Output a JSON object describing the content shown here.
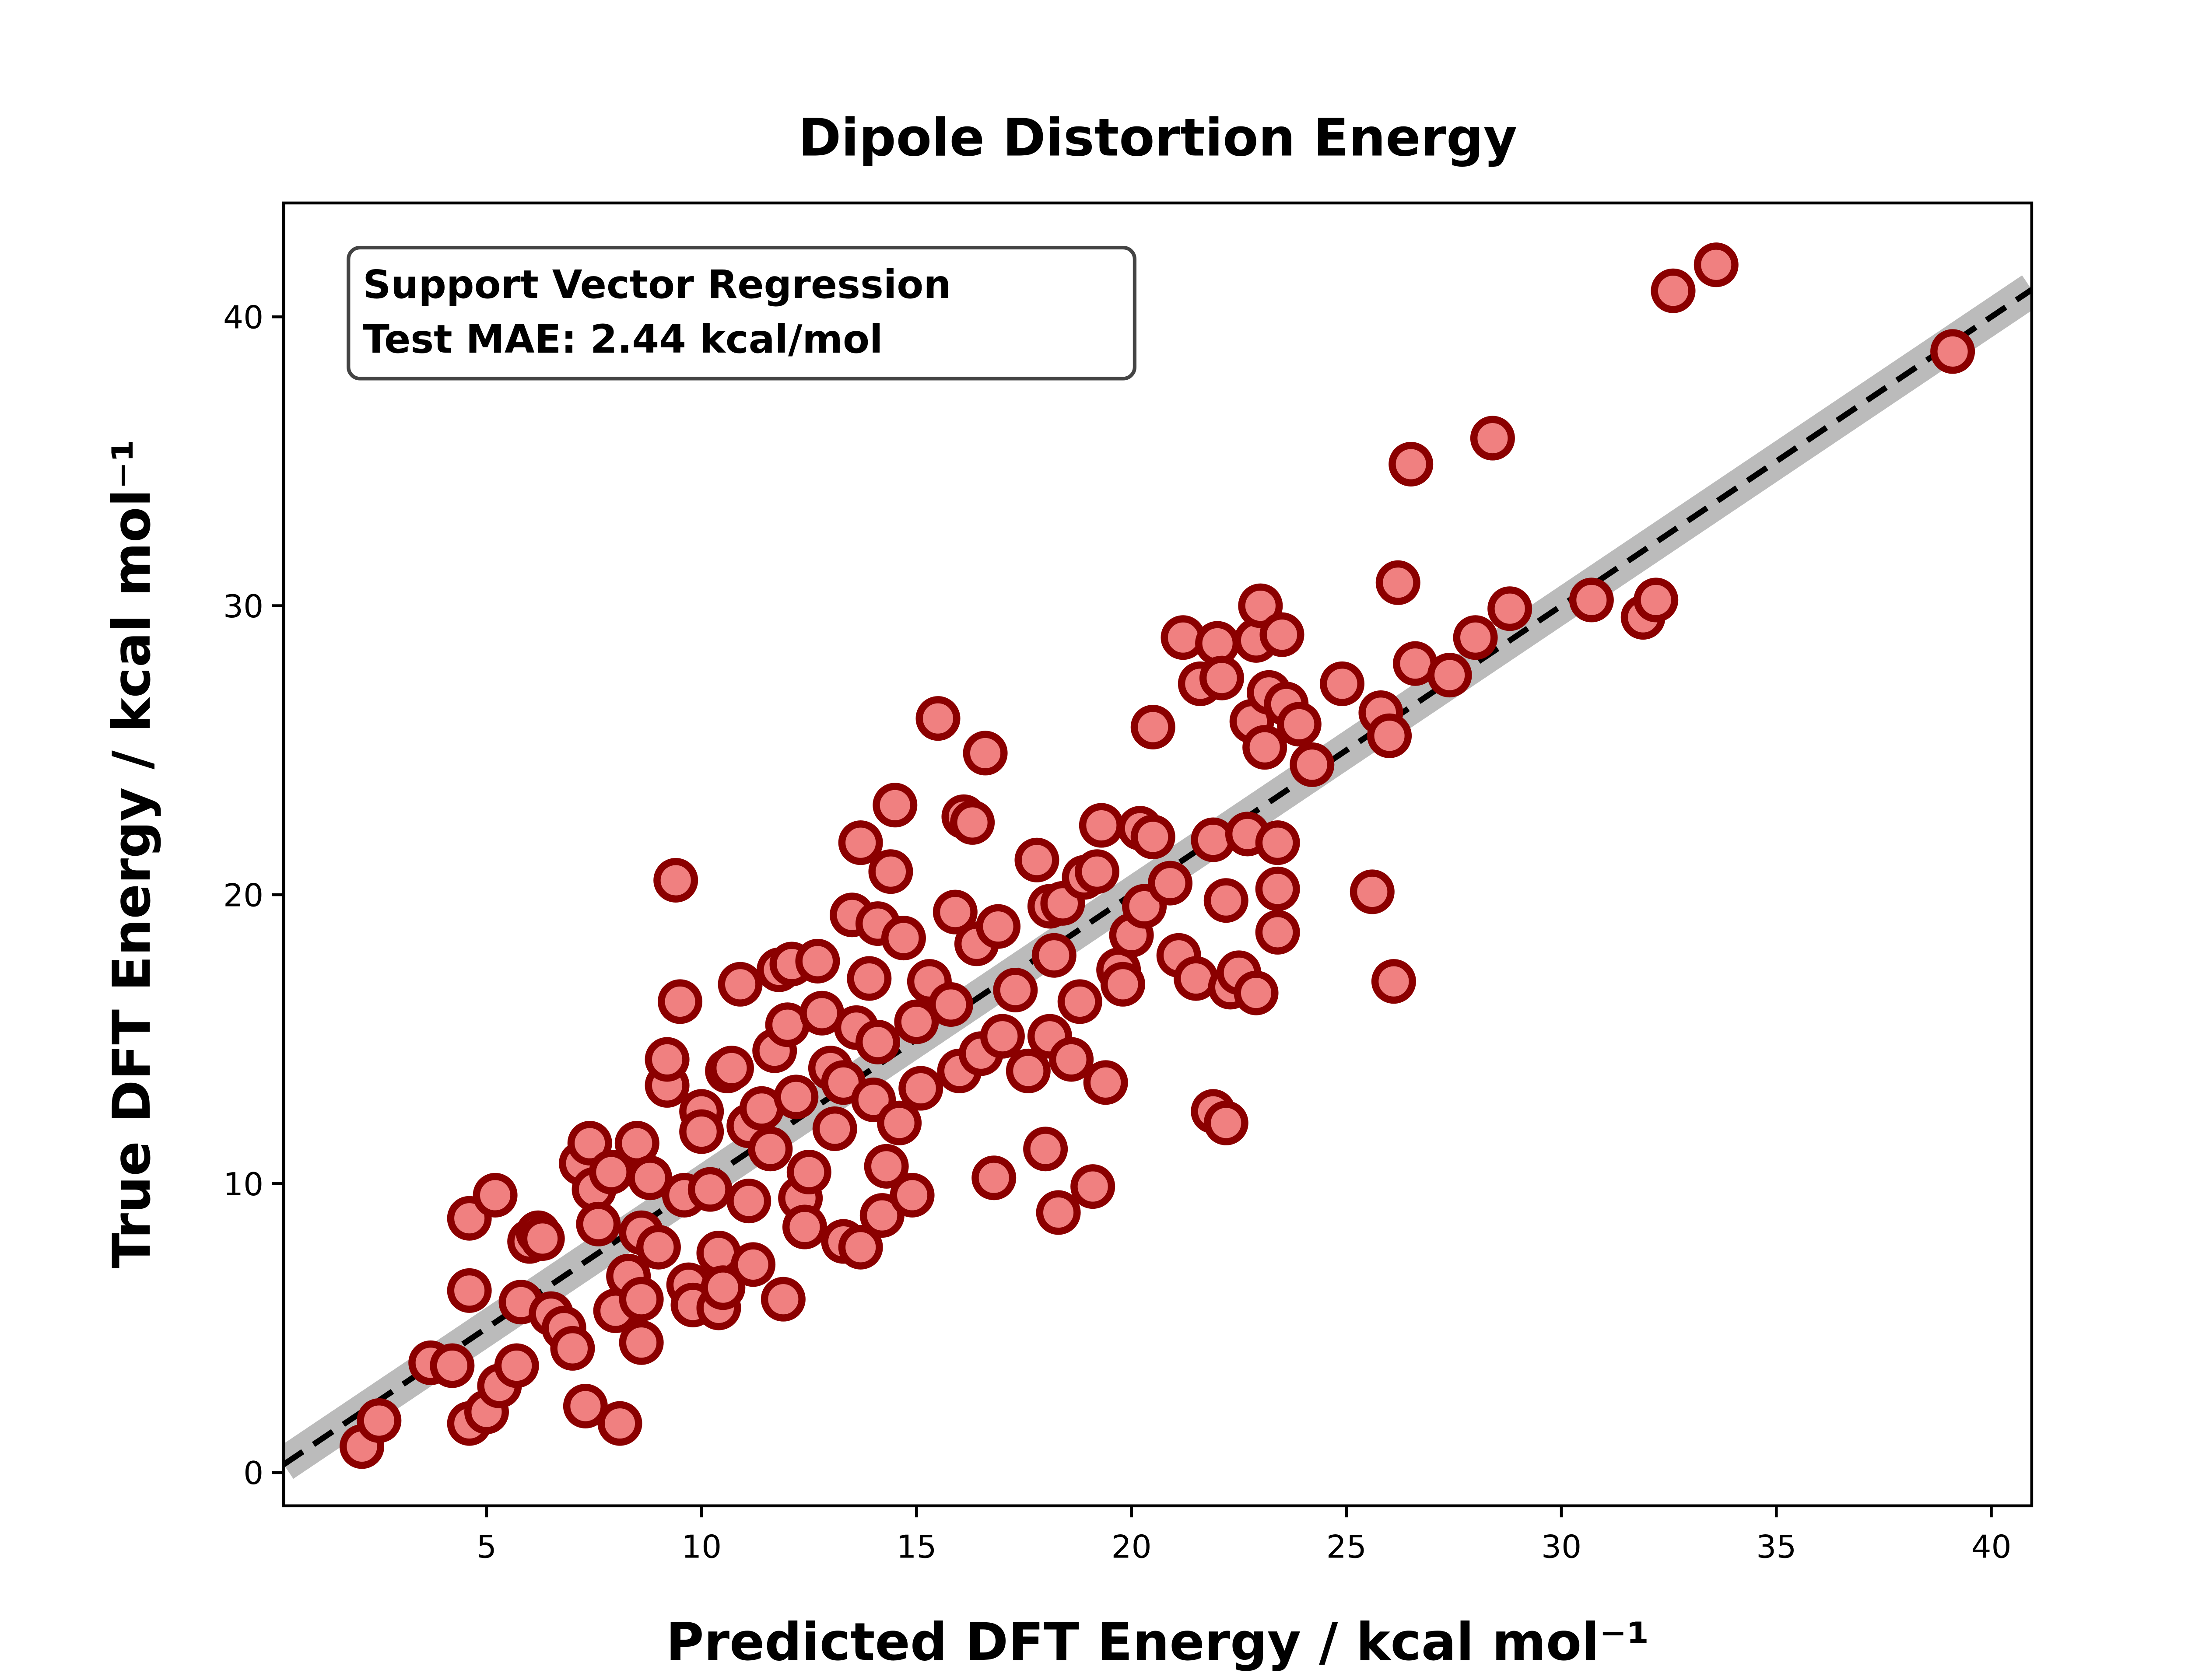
{
  "chart_data": {
    "type": "scatter",
    "title": "Dipole Distortion Energy",
    "xlabel": "Predicted DFT Energy / kcal mol⁻¹",
    "ylabel": "True DFT Energy / kcal mol⁻¹",
    "annotation": [
      "Support Vector Regression",
      "Test MAE: 2.44 kcal/mol"
    ],
    "xlim": [
      0.28,
      40.94
    ],
    "ylim": [
      -1.15,
      43.94
    ],
    "xticks": [
      5,
      10,
      15,
      20,
      25,
      30,
      35,
      40
    ],
    "yticks": [
      0,
      10,
      20,
      30,
      40
    ],
    "series": [
      {
        "color": "#f08080",
        "edgecolor": "#8b0000",
        "x": [
          2.1,
          2.5,
          3.7,
          4.2,
          4.6,
          5.0,
          4.6,
          4.6,
          5.2,
          5.3,
          5.7,
          5.8,
          6.0,
          6.2,
          6.3,
          6.5,
          6.8,
          7.0,
          7.3,
          7.2,
          7.4,
          7.5,
          7.6,
          7.9,
          8.0,
          8.1,
          8.3,
          8.5,
          8.6,
          8.6,
          8.6,
          8.8,
          9.0,
          9.2,
          9.2,
          9.4,
          9.5,
          9.6,
          9.7,
          9.8,
          10.0,
          10.0,
          10.2,
          10.4,
          10.4,
          10.5,
          10.6,
          10.7,
          10.9,
          11.1,
          11.1,
          11.2,
          11.4,
          11.6,
          11.7,
          11.8,
          11.9,
          12.0,
          12.1,
          12.2,
          12.3,
          12.4,
          12.5,
          12.7,
          12.8,
          13.0,
          13.1,
          13.3,
          13.3,
          13.5,
          13.6,
          13.7,
          13.7,
          13.9,
          14.0,
          14.1,
          14.1,
          14.2,
          14.3,
          14.4,
          14.5,
          14.6,
          14.7,
          14.9,
          15.0,
          15.1,
          15.3,
          15.5,
          15.8,
          15.9,
          16.0,
          16.1,
          16.3,
          16.4,
          16.5,
          16.6,
          16.8,
          16.9,
          17.0,
          17.3,
          17.6,
          17.8,
          18.0,
          18.1,
          18.1,
          18.2,
          18.3,
          18.4,
          18.6,
          18.8,
          18.9,
          19.1,
          19.2,
          19.3,
          19.4,
          19.7,
          19.8,
          20.0,
          20.2,
          20.3,
          20.5,
          20.5,
          20.9,
          21.1,
          21.2,
          21.5,
          21.6,
          21.9,
          21.9,
          22.0,
          22.1,
          22.2,
          22.2,
          22.3,
          22.5,
          22.7,
          22.8,
          22.9,
          22.9,
          23.0,
          23.1,
          23.2,
          23.4,
          23.4,
          23.4,
          23.5,
          23.6,
          23.9,
          24.2,
          24.9,
          25.6,
          25.8,
          26.0,
          26.1,
          26.2,
          26.6,
          26.5,
          27.4,
          28.0,
          28.4,
          28.8,
          30.7,
          31.9,
          32.2,
          32.6,
          33.6,
          39.1
        ],
        "values": [
          0.9,
          1.8,
          3.8,
          3.7,
          1.7,
          2.1,
          6.3,
          8.8,
          9.6,
          3.0,
          3.7,
          5.9,
          8.0,
          8.3,
          8.1,
          5.5,
          5.0,
          4.3,
          2.3,
          10.7,
          11.4,
          9.8,
          8.6,
          10.4,
          5.6,
          1.7,
          6.8,
          11.4,
          8.3,
          6.0,
          4.5,
          10.2,
          7.8,
          13.4,
          14.3,
          20.5,
          16.3,
          9.6,
          6.5,
          5.8,
          12.5,
          11.8,
          9.8,
          7.6,
          5.7,
          6.4,
          13.9,
          14.0,
          16.9,
          12.0,
          9.4,
          7.2,
          12.6,
          11.2,
          14.6,
          17.4,
          6.0,
          15.5,
          17.6,
          13.0,
          9.5,
          8.5,
          10.4,
          17.7,
          15.9,
          14.0,
          11.9,
          13.5,
          8.0,
          19.3,
          15.4,
          21.8,
          7.8,
          17.1,
          12.9,
          14.9,
          19.0,
          8.9,
          10.6,
          20.8,
          23.1,
          12.1,
          18.5,
          9.6,
          15.6,
          13.3,
          17.0,
          26.1,
          16.2,
          19.4,
          13.9,
          22.7,
          22.5,
          18.3,
          14.5,
          24.9,
          10.2,
          18.9,
          15.1,
          16.7,
          13.9,
          21.2,
          11.2,
          15.1,
          19.6,
          17.9,
          9.0,
          19.7,
          14.3,
          16.3,
          20.6,
          9.9,
          20.8,
          22.4,
          13.5,
          17.4,
          16.9,
          18.6,
          22.3,
          19.6,
          25.8,
          22.0,
          20.4,
          17.9,
          28.9,
          17.1,
          27.3,
          21.9,
          12.5,
          28.7,
          27.5,
          12.1,
          19.8,
          16.8,
          17.3,
          22.1,
          26.0,
          16.6,
          28.8,
          30.0,
          25.1,
          27.0,
          20.2,
          21.8,
          18.7,
          29.0,
          26.6,
          25.9,
          24.5,
          27.3,
          20.1,
          26.3,
          25.5,
          17.0,
          30.8,
          28.0,
          34.9,
          27.6,
          28.9,
          35.8,
          29.9,
          30.2,
          29.6,
          30.2,
          40.9,
          41.8,
          38.8
        ]
      }
    ]
  }
}
